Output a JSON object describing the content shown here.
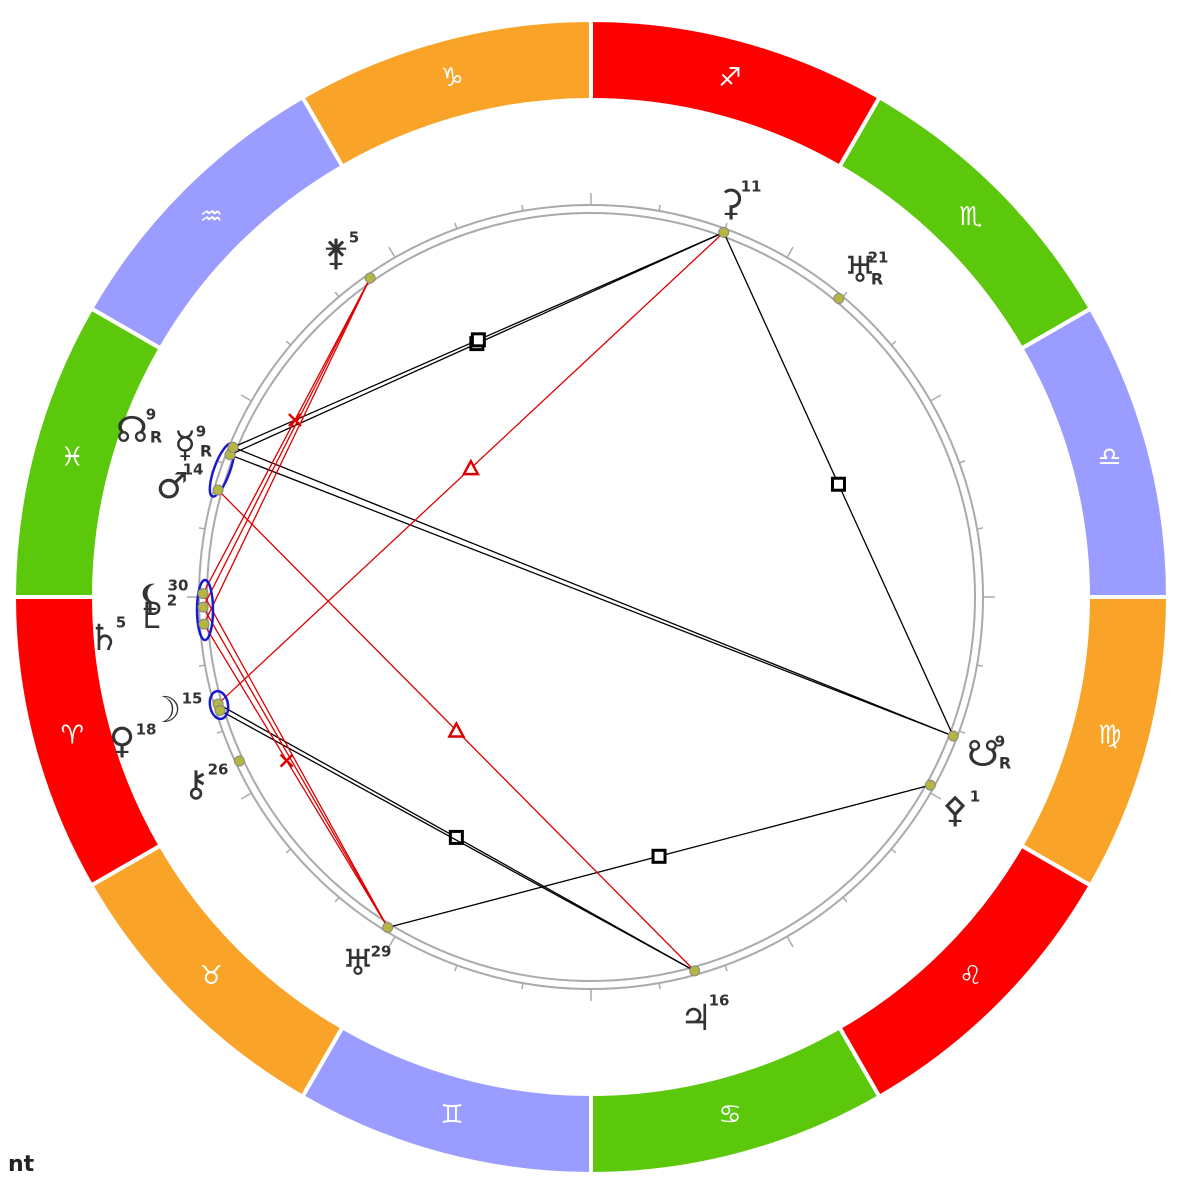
{
  "signs": [
    "♈︎",
    "♉︎",
    "♊︎",
    "♋︎",
    "♌︎",
    "♍︎",
    "♎︎",
    "♏︎",
    "♐︎",
    "♑︎",
    "♒︎",
    "♓︎"
  ],
  "planets": [
    {
      "glyph": "⚳",
      "degree": "11"
    },
    {
      "glyph": "♅",
      "degree": "21",
      "retrograde": "R"
    },
    {
      "glyph": "⚵",
      "degree": "5"
    },
    {
      "glyph": "☊",
      "degree": "9",
      "retrograde": "R"
    },
    {
      "glyph": "☿",
      "degree": "9",
      "retrograde": "R"
    },
    {
      "glyph": "♂",
      "degree": "14"
    },
    {
      "glyph": "⚸",
      "degree": "30"
    },
    {
      "glyph": "♇",
      "degree": "2"
    },
    {
      "glyph": "♄",
      "degree": "5"
    },
    {
      "glyph": "☽",
      "degree": "15"
    },
    {
      "glyph": "♀",
      "degree": "18"
    },
    {
      "glyph": "⚷",
      "degree": "26"
    },
    {
      "glyph": "♅",
      "degree": "29"
    },
    {
      "glyph": "♃",
      "degree": "16"
    },
    {
      "glyph": "☋",
      "degree": "9",
      "retrograde": "R"
    },
    {
      "glyph": "⚴",
      "degree": "1"
    }
  ],
  "footer_text": "nt"
}
